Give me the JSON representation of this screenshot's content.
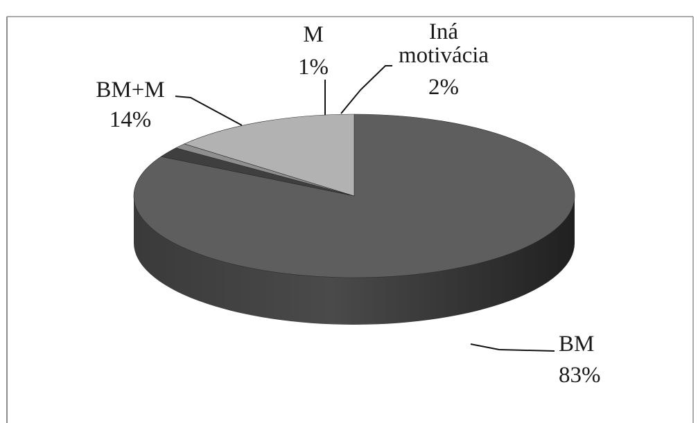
{
  "chart_data": {
    "type": "pie",
    "style": "3d",
    "title": "",
    "slices": [
      {
        "label": "BM",
        "value": 83,
        "percent_text": "83%",
        "color": "#5e5e5e"
      },
      {
        "label": "Iná motivácia",
        "value": 2,
        "percent_text": "2%",
        "color": "#3f3f3f"
      },
      {
        "label": "M",
        "value": 1,
        "percent_text": "1%",
        "color": "#8f8f8f"
      },
      {
        "label": "BM+M",
        "value": 14,
        "percent_text": "14%",
        "color": "#b2b2b2"
      }
    ],
    "legend": "none",
    "labels": "outside with leader lines"
  },
  "colors": {
    "background": "#ffffff",
    "frame_border": "#8c8c8c",
    "label_text": "#1a1a1a",
    "leader_line": "#111111"
  }
}
